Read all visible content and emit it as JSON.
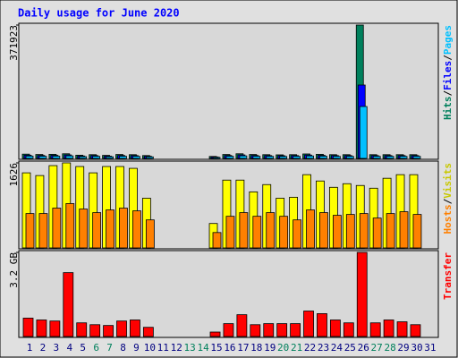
{
  "title": "Daily usage for June 2020",
  "chart_data": [
    {
      "type": "bar",
      "ylim": [
        0,
        371923
      ],
      "yticks": [
        371923
      ],
      "side_label": [
        {
          "text": "Hits",
          "color": "#00805c"
        },
        {
          "text": "/",
          "color": "#000000"
        },
        {
          "text": "Files",
          "color": "#0000ff"
        },
        {
          "text": "/",
          "color": "#000000"
        },
        {
          "text": "Pages",
          "color": "#00c0ff"
        }
      ],
      "series": [
        {
          "name": "Hits",
          "color": "#00805c",
          "values": [
            12000,
            11000,
            11500,
            13000,
            9000,
            10500,
            8500,
            11000,
            10500,
            8000,
            null,
            null,
            null,
            null,
            5500,
            11000,
            13000,
            11000,
            10500,
            10000,
            10500,
            12500,
            11500,
            10500,
            10500,
            371923,
            10500,
            10500,
            10500,
            10500,
            null
          ]
        },
        {
          "name": "Files",
          "color": "#0000ff",
          "values": [
            9000,
            8200,
            8600,
            9800,
            6800,
            7900,
            6400,
            8200,
            7900,
            6000,
            null,
            null,
            null,
            null,
            4100,
            8200,
            9800,
            8200,
            7900,
            7500,
            7900,
            9400,
            8600,
            7900,
            7900,
            204700,
            7900,
            7900,
            7900,
            7900,
            null
          ]
        },
        {
          "name": "Pages",
          "color": "#00c0ff",
          "values": [
            6600,
            6000,
            6300,
            7100,
            5000,
            5800,
            4700,
            6000,
            5800,
            4400,
            null,
            null,
            null,
            null,
            3000,
            6000,
            7100,
            6000,
            5800,
            5500,
            5800,
            6900,
            6300,
            5800,
            5800,
            144800,
            5800,
            5800,
            5800,
            5800,
            null
          ]
        }
      ]
    },
    {
      "type": "bar",
      "ylim": [
        0,
        1626
      ],
      "yticks": [
        1626
      ],
      "side_label": [
        {
          "text": "Hosts",
          "color": "#ff8000"
        },
        {
          "text": "/",
          "color": "#000000"
        },
        {
          "text": "Visits",
          "color": "#c8c800"
        }
      ],
      "series": [
        {
          "name": "Visits",
          "color": "#ffff00",
          "values": [
            1436,
            1384,
            1574,
            1626,
            1557,
            1436,
            1557,
            1557,
            1522,
            951,
            null,
            null,
            null,
            null,
            467,
            1297,
            1297,
            1072,
            1211,
            951,
            969,
            1401,
            1280,
            1159,
            1228,
            1194,
            1142,
            1332,
            1401,
            1401,
            null
          ]
        },
        {
          "name": "Hosts",
          "color": "#ff8000",
          "values": [
            657,
            657,
            761,
            848,
            744,
            675,
            727,
            761,
            709,
            536,
            null,
            null,
            null,
            null,
            294,
            605,
            675,
            605,
            675,
            605,
            536,
            727,
            675,
            623,
            640,
            657,
            571,
            657,
            692,
            640,
            null
          ]
        }
      ]
    },
    {
      "type": "bar",
      "ylim": [
        0,
        3.2
      ],
      "yticks": [
        {
          "value": 3.2,
          "label": "3.2 GB"
        }
      ],
      "side_label": [
        {
          "text": "Transfer",
          "color": "#ff0000"
        }
      ],
      "categories": [
        "1",
        "2",
        "3",
        "4",
        "5",
        "6",
        "7",
        "8",
        "9",
        "10",
        "11",
        "12",
        "13",
        "14",
        "15",
        "16",
        "17",
        "18",
        "19",
        "20",
        "21",
        "22",
        "23",
        "24",
        "25",
        "26",
        "27",
        "28",
        "29",
        "30",
        "31"
      ],
      "category_colors": [
        "#000080",
        "#000080",
        "#000080",
        "#000080",
        "#000080",
        "#00805c",
        "#00805c",
        "#000080",
        "#000080",
        "#000080",
        "#000080",
        "#000080",
        "#00805c",
        "#00805c",
        "#000080",
        "#000080",
        "#000080",
        "#000080",
        "#000080",
        "#00805c",
        "#00805c",
        "#000080",
        "#000080",
        "#000080",
        "#000080",
        "#000080",
        "#00805c",
        "#00805c",
        "#000080",
        "#000080",
        "#000080"
      ],
      "series": [
        {
          "name": "Transfer",
          "color": "#ff0000",
          "values": [
            0.7,
            0.63,
            0.59,
            2.43,
            0.52,
            0.45,
            0.42,
            0.59,
            0.63,
            0.35,
            null,
            null,
            null,
            null,
            0.17,
            0.49,
            0.83,
            0.45,
            0.49,
            0.49,
            0.49,
            0.97,
            0.87,
            0.63,
            0.52,
            3.2,
            0.52,
            0.63,
            0.56,
            0.45,
            null
          ]
        }
      ]
    }
  ]
}
